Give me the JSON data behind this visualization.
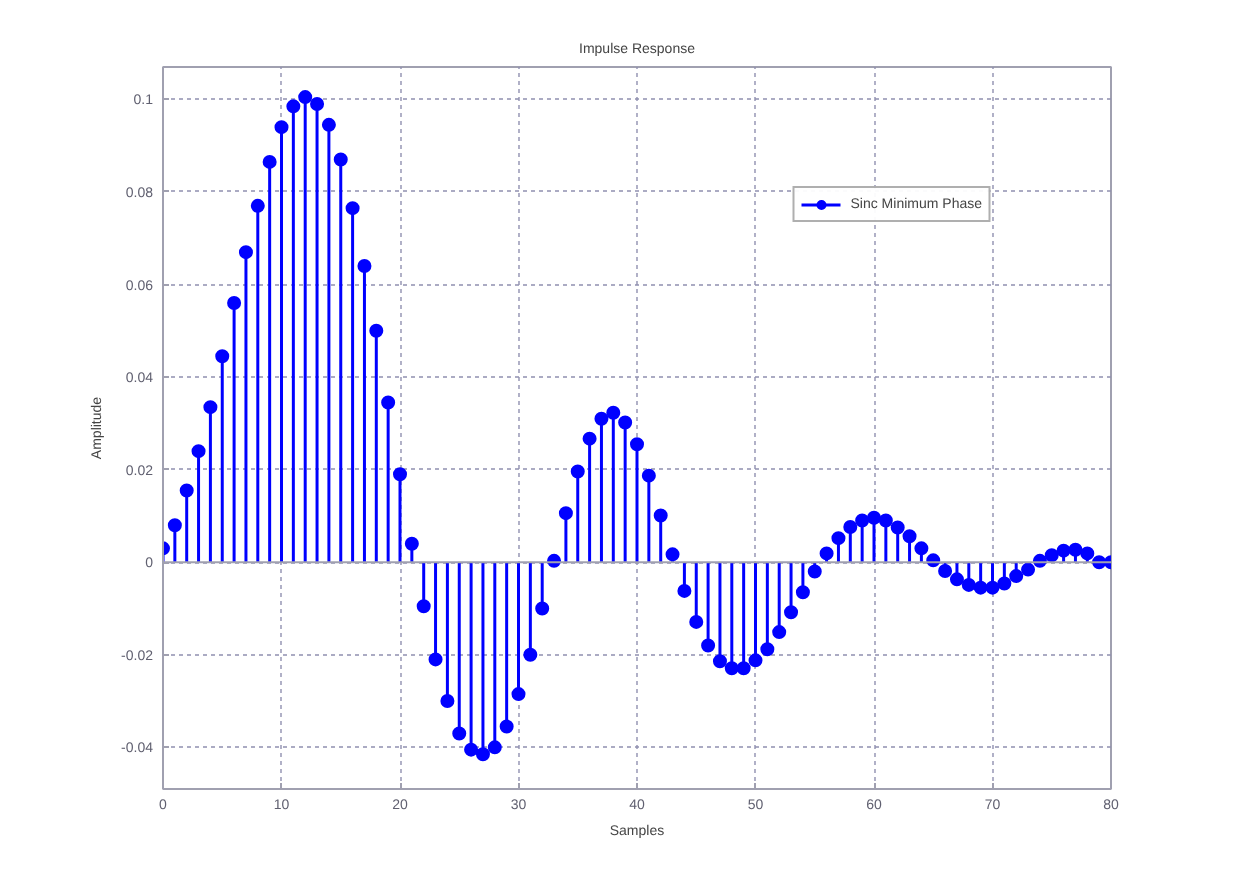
{
  "chart_data": {
    "type": "lollipop",
    "title": "Impulse Response",
    "xlabel": "Samples",
    "ylabel": "Amplitude",
    "x": [
      0,
      1,
      2,
      3,
      4,
      5,
      6,
      7,
      8,
      9,
      10,
      11,
      12,
      13,
      14,
      15,
      16,
      17,
      18,
      19,
      20,
      21,
      22,
      23,
      24,
      25,
      26,
      27,
      28,
      29,
      30,
      31,
      32,
      33,
      34,
      35,
      36,
      37,
      38,
      39,
      40,
      41,
      42,
      43,
      44,
      45,
      46,
      47,
      48,
      49,
      50,
      51,
      52,
      53,
      54,
      55,
      56,
      57,
      58,
      59,
      60,
      61,
      62,
      63,
      64,
      65,
      66,
      67,
      68,
      69,
      70,
      71,
      72,
      73,
      74,
      75,
      76,
      77,
      78,
      79,
      80
    ],
    "series": [
      {
        "name": "Sinc Minimum Phase",
        "color": "#0000ff",
        "values": [
          0.003,
          0.008,
          0.0155,
          0.024,
          0.0335,
          0.0445,
          0.056,
          0.067,
          0.077,
          0.0865,
          0.094,
          0.0985,
          0.1005,
          0.099,
          0.0945,
          0.087,
          0.0765,
          0.064,
          0.05,
          0.0345,
          0.019,
          0.004,
          -0.0095,
          -0.021,
          -0.03,
          -0.037,
          -0.0405,
          -0.0415,
          -0.04,
          -0.0355,
          -0.0285,
          -0.02,
          -0.01,
          0.0003,
          0.0106,
          0.0196,
          0.0267,
          0.031,
          0.0323,
          0.0302,
          0.0255,
          0.0187,
          0.0101,
          0.0017,
          -0.0062,
          -0.0129,
          -0.018,
          -0.0214,
          -0.0229,
          -0.0229,
          -0.0212,
          -0.0188,
          -0.0151,
          -0.0108,
          -0.0065,
          -0.002,
          0.0019,
          0.0052,
          0.0076,
          0.009,
          0.0096,
          0.009,
          0.0075,
          0.0056,
          0.003,
          0.0004,
          -0.0019,
          -0.0037,
          -0.0049,
          -0.0055,
          -0.0055,
          -0.0046,
          -0.003,
          -0.0016,
          0.0003,
          0.0015,
          0.0025,
          0.0027,
          0.0019,
          0,
          0
        ]
      }
    ],
    "xlim": [
      0,
      80
    ],
    "xticks": [
      0,
      10,
      20,
      30,
      40,
      50,
      60,
      70,
      80
    ],
    "ylim": [
      -0.049,
      0.107
    ],
    "yticks": [
      -0.04,
      -0.02,
      0,
      0.02,
      0.04,
      0.06,
      0.08,
      0.1
    ],
    "grid": true,
    "legend": "top right",
    "marker": "circle",
    "line_style": "solid"
  }
}
